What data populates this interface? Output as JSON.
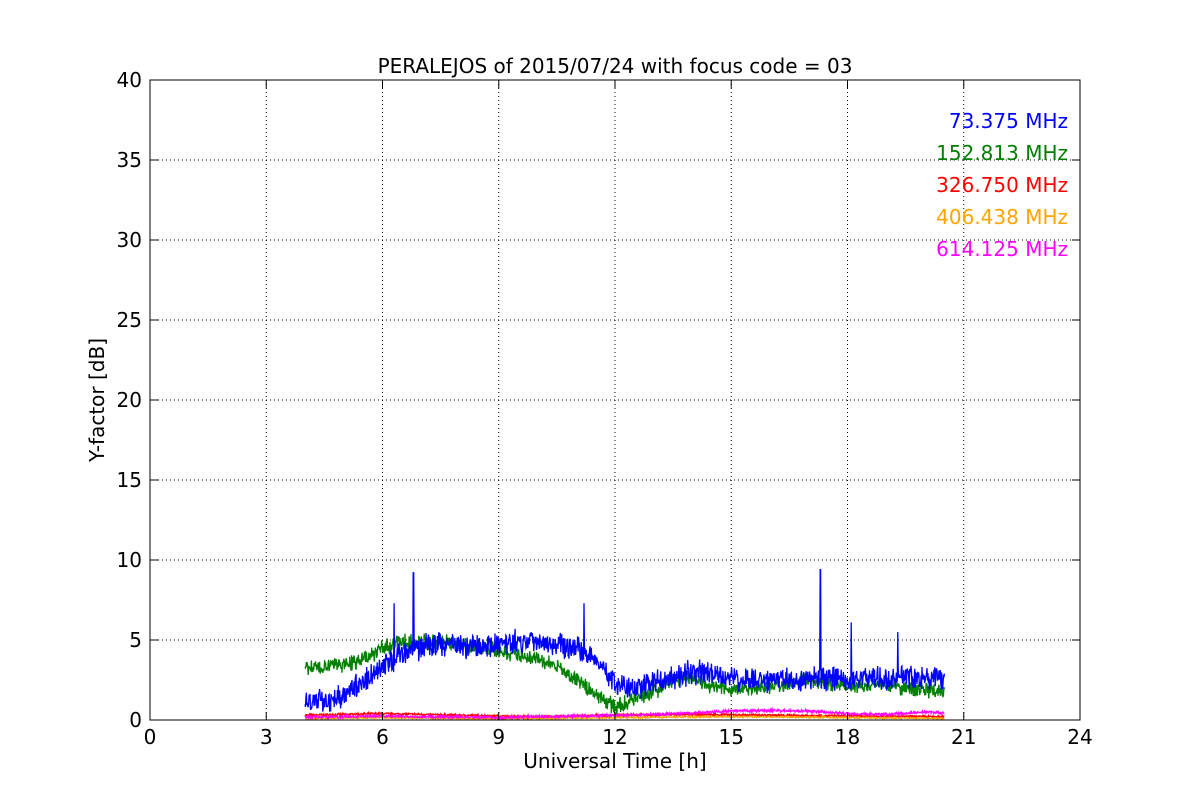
{
  "chart_data": {
    "type": "line",
    "title": "PERALEJOS of 2015/07/24 with focus code = 03",
    "xlabel": "Universal Time [h]",
    "ylabel": "Y-factor [dB]",
    "xlim": [
      0,
      24
    ],
    "ylim": [
      0,
      40
    ],
    "xticks": [
      "0",
      "3",
      "6",
      "9",
      "12",
      "15",
      "18",
      "21",
      "24"
    ],
    "yticks": [
      "0",
      "5",
      "10",
      "15",
      "20",
      "25",
      "30",
      "35",
      "40"
    ],
    "grid": true,
    "legend_position": "top-right",
    "series": [
      {
        "name": "73.375 MHz",
        "color": "#0000ff",
        "x": [
          4.0,
          4.5,
          5.0,
          5.5,
          6.0,
          6.5,
          7.0,
          7.5,
          8.0,
          8.5,
          9.0,
          9.5,
          10.0,
          10.5,
          11.0,
          11.5,
          12.0,
          12.5,
          13.0,
          13.5,
          14.0,
          14.5,
          15.0,
          15.5,
          16.0,
          16.5,
          17.0,
          17.5,
          18.0,
          18.5,
          19.0,
          19.5,
          20.0,
          20.5
        ],
        "values": [
          1.1,
          1.2,
          1.6,
          2.4,
          3.3,
          4.1,
          4.6,
          4.8,
          4.6,
          4.6,
          4.7,
          4.9,
          5.0,
          4.8,
          4.5,
          3.8,
          2.2,
          2.0,
          2.3,
          2.6,
          3.0,
          2.8,
          2.6,
          2.5,
          2.4,
          2.6,
          2.5,
          2.6,
          2.5,
          2.7,
          2.6,
          2.8,
          2.7,
          2.6
        ],
        "spikes": [
          [
            6.3,
            7.3
          ],
          [
            6.8,
            9.2
          ],
          [
            11.2,
            7.3
          ],
          [
            17.3,
            9.4
          ],
          [
            18.1,
            6.1
          ],
          [
            19.3,
            5.5
          ]
        ]
      },
      {
        "name": "152.813 MHz",
        "color": "#008000",
        "x": [
          4.0,
          4.5,
          5.0,
          5.5,
          6.0,
          6.5,
          7.0,
          7.5,
          8.0,
          8.5,
          9.0,
          9.5,
          10.0,
          10.5,
          11.0,
          11.5,
          12.0,
          12.5,
          13.0,
          13.5,
          14.0,
          14.5,
          15.0,
          15.5,
          16.0,
          16.5,
          17.0,
          17.5,
          18.0,
          18.5,
          19.0,
          19.5,
          20.0,
          20.5
        ],
        "values": [
          3.2,
          3.3,
          3.5,
          3.8,
          4.5,
          4.8,
          4.9,
          4.9,
          4.7,
          4.5,
          4.3,
          4.1,
          3.8,
          3.3,
          2.5,
          1.6,
          0.8,
          1.3,
          1.8,
          2.4,
          2.7,
          2.1,
          1.9,
          2.0,
          2.1,
          2.3,
          2.5,
          2.3,
          2.1,
          2.2,
          2.2,
          2.0,
          1.9,
          1.7
        ]
      },
      {
        "name": "326.750 MHz",
        "color": "#ff0000",
        "x": [
          4.0,
          6.0,
          8.0,
          10.0,
          12.0,
          14.0,
          16.0,
          18.0,
          20.5
        ],
        "values": [
          0.3,
          0.4,
          0.3,
          0.2,
          0.3,
          0.35,
          0.3,
          0.25,
          0.2
        ]
      },
      {
        "name": "406.438 MHz",
        "color": "#ffa500",
        "x": [
          4.0,
          6.0,
          8.0,
          10.0,
          12.0,
          14.0,
          16.0,
          18.0,
          20.5
        ],
        "values": [
          0.1,
          0.15,
          0.1,
          0.1,
          0.15,
          0.2,
          0.2,
          0.15,
          0.1
        ]
      },
      {
        "name": "614.125 MHz",
        "color": "#ff00ff",
        "x": [
          4.0,
          5.0,
          6.0,
          7.0,
          8.0,
          9.0,
          10.0,
          11.0,
          12.0,
          13.0,
          14.0,
          15.0,
          16.0,
          17.0,
          18.0,
          19.0,
          20.0,
          20.5
        ],
        "values": [
          0.2,
          0.2,
          0.25,
          0.2,
          0.2,
          0.15,
          0.2,
          0.25,
          0.3,
          0.35,
          0.45,
          0.55,
          0.6,
          0.55,
          0.4,
          0.35,
          0.5,
          0.45
        ]
      }
    ]
  }
}
